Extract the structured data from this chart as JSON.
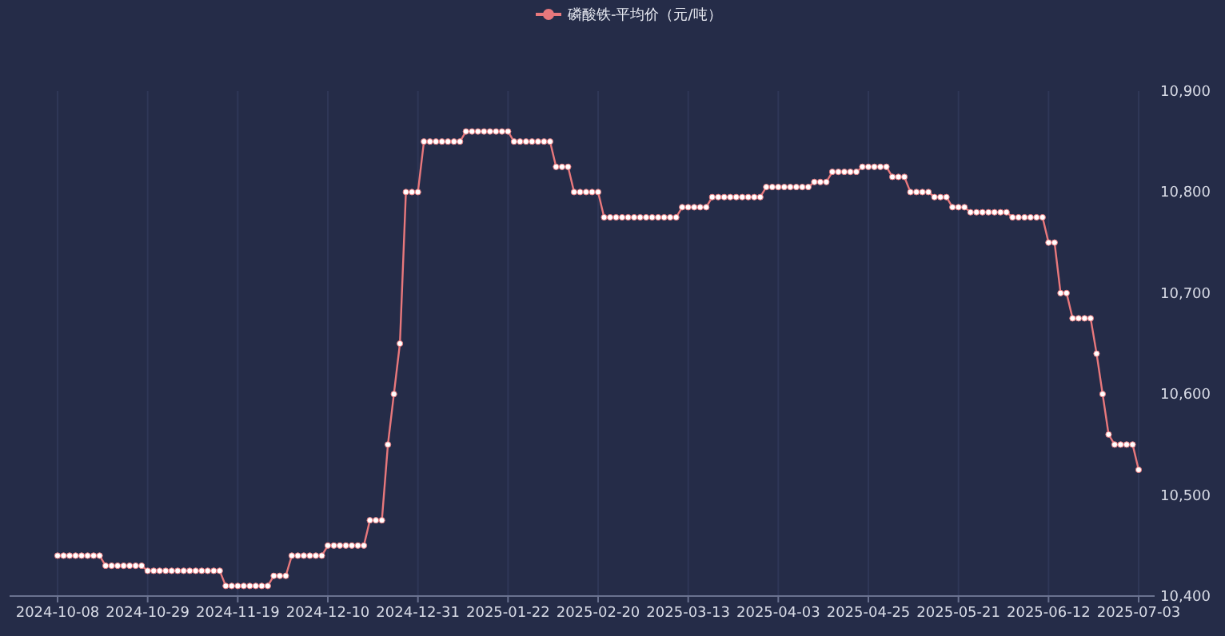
{
  "chart_data": {
    "type": "line",
    "legend": "top",
    "grid": "x",
    "marker": "circle",
    "ylim": [
      10400,
      10900
    ],
    "yticks": [
      {
        "value": 10400,
        "label": "10,400"
      },
      {
        "value": 10500,
        "label": "10,500"
      },
      {
        "value": 10600,
        "label": "10,600"
      },
      {
        "value": 10700,
        "label": "10,700"
      },
      {
        "value": 10800,
        "label": "10,800"
      },
      {
        "value": 10900,
        "label": "10,900"
      }
    ],
    "categories": [
      "2024-10-08",
      null,
      null,
      null,
      null,
      null,
      null,
      null,
      null,
      null,
      null,
      null,
      null,
      null,
      null,
      "2024-10-29",
      null,
      null,
      null,
      null,
      null,
      null,
      null,
      null,
      null,
      null,
      null,
      null,
      null,
      null,
      "2024-11-19",
      null,
      null,
      null,
      null,
      null,
      null,
      null,
      null,
      null,
      null,
      null,
      null,
      null,
      null,
      "2024-12-10",
      null,
      null,
      null,
      null,
      null,
      null,
      null,
      null,
      null,
      null,
      null,
      null,
      null,
      null,
      "2024-12-31",
      null,
      null,
      null,
      null,
      null,
      null,
      null,
      null,
      null,
      null,
      null,
      null,
      null,
      null,
      "2025-01-22",
      null,
      null,
      null,
      null,
      null,
      null,
      null,
      null,
      null,
      null,
      null,
      null,
      null,
      null,
      "2025-02-20",
      null,
      null,
      null,
      null,
      null,
      null,
      null,
      null,
      null,
      null,
      null,
      null,
      null,
      null,
      "2025-03-13",
      null,
      null,
      null,
      null,
      null,
      null,
      null,
      null,
      null,
      null,
      null,
      null,
      null,
      null,
      "2025-04-03",
      null,
      null,
      null,
      null,
      null,
      null,
      null,
      null,
      null,
      null,
      null,
      null,
      null,
      null,
      "2025-04-25",
      null,
      null,
      null,
      null,
      null,
      null,
      null,
      null,
      null,
      null,
      null,
      null,
      null,
      null,
      "2025-05-21",
      null,
      null,
      null,
      null,
      null,
      null,
      null,
      null,
      null,
      null,
      null,
      null,
      null,
      null,
      "2025-06-12",
      null,
      null,
      null,
      null,
      null,
      null,
      null,
      null,
      null,
      null,
      null,
      null,
      null,
      null,
      "2025-07-03"
    ],
    "series": [
      {
        "name": "磷酸铁-平均价（元/吨）",
        "color": "#e8787c",
        "values": [
          10440,
          10440,
          10440,
          10440,
          10440,
          10440,
          10440,
          10440,
          10430,
          10430,
          10430,
          10430,
          10430,
          10430,
          10430,
          10425,
          10425,
          10425,
          10425,
          10425,
          10425,
          10425,
          10425,
          10425,
          10425,
          10425,
          10425,
          10425,
          10410,
          10410,
          10410,
          10410,
          10410,
          10410,
          10410,
          10410,
          10420,
          10420,
          10420,
          10440,
          10440,
          10440,
          10440,
          10440,
          10440,
          10450,
          10450,
          10450,
          10450,
          10450,
          10450,
          10450,
          10475,
          10475,
          10475,
          10550,
          10600,
          10650,
          10800,
          10800,
          10800,
          10850,
          10850,
          10850,
          10850,
          10850,
          10850,
          10850,
          10860,
          10860,
          10860,
          10860,
          10860,
          10860,
          10860,
          10860,
          10850,
          10850,
          10850,
          10850,
          10850,
          10850,
          10850,
          10825,
          10825,
          10825,
          10800,
          10800,
          10800,
          10800,
          10800,
          10775,
          10775,
          10775,
          10775,
          10775,
          10775,
          10775,
          10775,
          10775,
          10775,
          10775,
          10775,
          10775,
          10785,
          10785,
          10785,
          10785,
          10785,
          10795,
          10795,
          10795,
          10795,
          10795,
          10795,
          10795,
          10795,
          10795,
          10805,
          10805,
          10805,
          10805,
          10805,
          10805,
          10805,
          10805,
          10810,
          10810,
          10810,
          10820,
          10820,
          10820,
          10820,
          10820,
          10825,
          10825,
          10825,
          10825,
          10825,
          10815,
          10815,
          10815,
          10800,
          10800,
          10800,
          10800,
          10795,
          10795,
          10795,
          10785,
          10785,
          10785,
          10780,
          10780,
          10780,
          10780,
          10780,
          10780,
          10780,
          10775,
          10775,
          10775,
          10775,
          10775,
          10775,
          10750,
          10750,
          10700,
          10700,
          10675,
          10675,
          10675,
          10675,
          10640,
          10600,
          10560,
          10550,
          10550,
          10550,
          10550,
          10525
        ]
      }
    ]
  }
}
